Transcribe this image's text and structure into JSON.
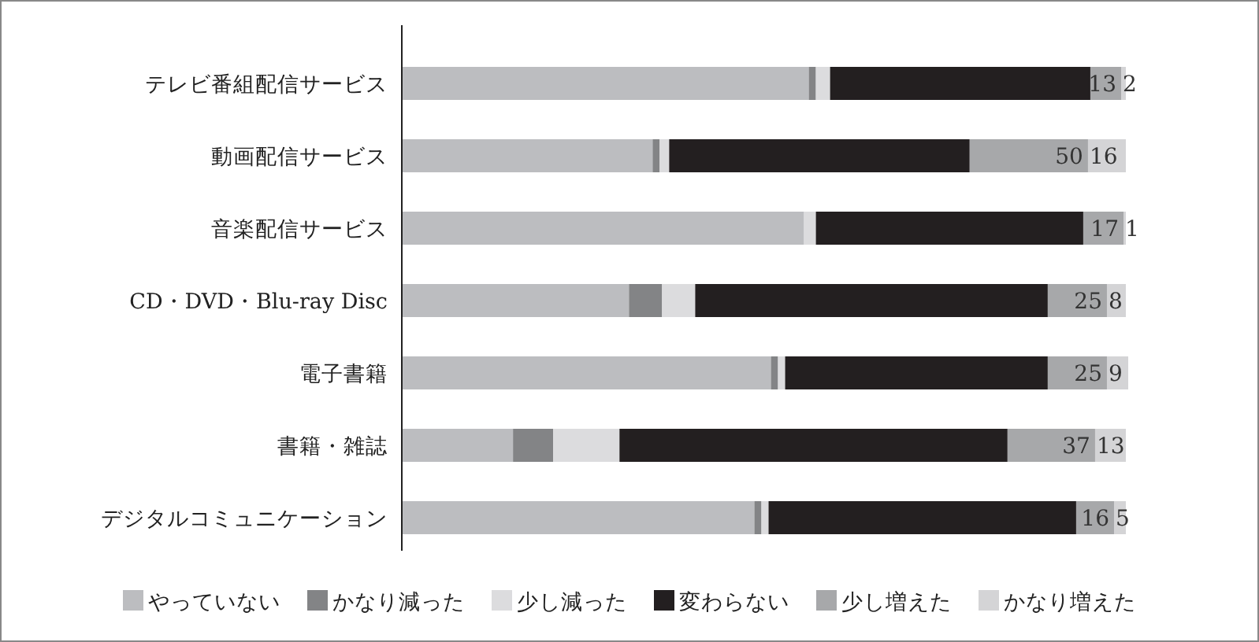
{
  "chart_data": {
    "type": "bar",
    "orientation": "horizontal",
    "stacked": true,
    "legend": "bottom",
    "categories": [
      "テレビ番組配信サービス",
      "動画配信サービス",
      "音楽配信サービス",
      "CD・DVD・Blu-ray Disc",
      "電子書籍",
      "書籍・雑誌",
      "デジタルコミュニケーション"
    ],
    "series": [
      {
        "name": "やっていない",
        "color": "#bcbdc0",
        "values": [
          172,
          106,
          170,
          96,
          156,
          47,
          149
        ]
      },
      {
        "name": "かなり減った",
        "color": "#838486",
        "values": [
          3,
          3,
          0,
          14,
          3,
          17,
          3
        ]
      },
      {
        "name": "少し減った",
        "color": "#dcdcde",
        "values": [
          6,
          4,
          5,
          14,
          3,
          28,
          3
        ]
      },
      {
        "name": "変わらない",
        "color": "#231f20",
        "values": [
          110,
          127,
          113,
          149,
          111,
          164,
          130
        ]
      },
      {
        "name": "少し増えた",
        "color": "#a7a8aa",
        "values": [
          13,
          50,
          17,
          25,
          25,
          37,
          16
        ],
        "value_labels": [
          "13",
          "50",
          "17",
          "25",
          "25",
          "37",
          "16"
        ]
      },
      {
        "name": "かなり増えた",
        "color": "#d4d4d6",
        "values": [
          2,
          16,
          1,
          8,
          9,
          13,
          5
        ],
        "value_labels": [
          "2",
          "16",
          "1",
          "8",
          "9",
          "13",
          "5"
        ]
      }
    ]
  }
}
